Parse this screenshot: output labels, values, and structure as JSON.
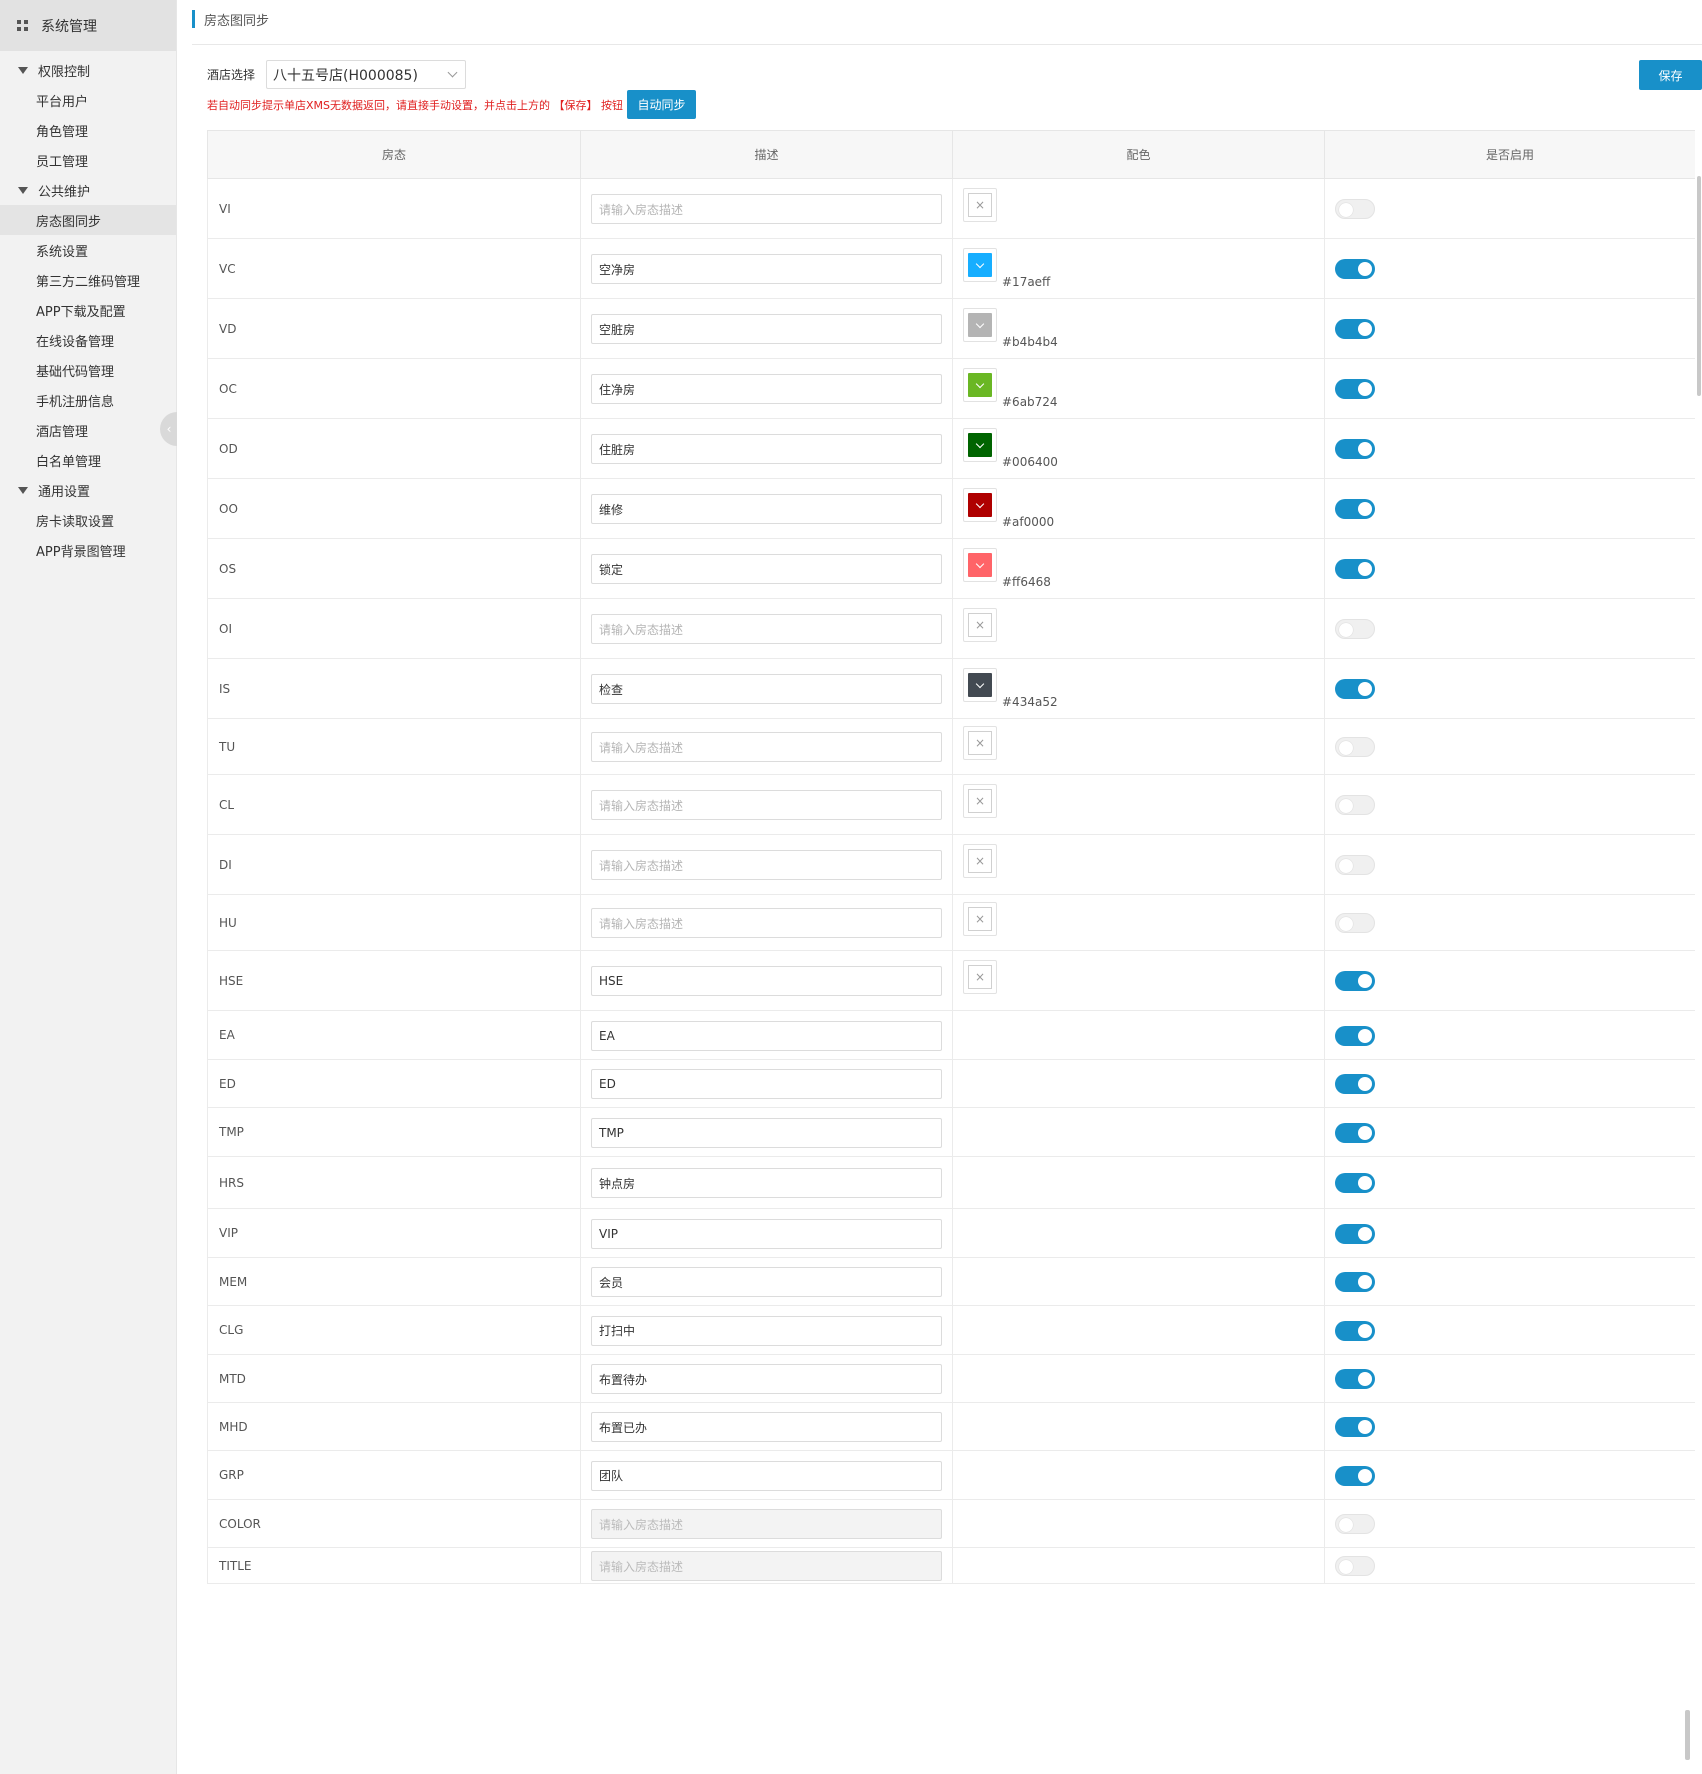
{
  "sidebar": {
    "title": "系统管理",
    "groups": [
      {
        "label": "权限控制",
        "items": [
          "平台用户",
          "角色管理",
          "员工管理"
        ]
      },
      {
        "label": "公共维护",
        "items": [
          "房态图同步",
          "系统设置",
          "第三方二维码管理",
          "APP下载及配置",
          "在线设备管理",
          "基础代码管理",
          "手机注册信息",
          "酒店管理",
          "白名单管理"
        ]
      },
      {
        "label": "通用设置",
        "items": [
          "房卡读取设置",
          "APP背景图管理"
        ]
      }
    ],
    "active_item": "房态图同步",
    "collapse_glyph": "‹"
  },
  "header": {
    "breadcrumb": "房态图同步",
    "hotel_label": "酒店选择",
    "hotel_value": "八十五号店(H000085)",
    "save_label": "保存",
    "warning": "若自动同步提示单店XMS无数据返回，请直接手动设置，并点击上方的 【保存】 按钮",
    "auto_sync_label": "自动同步"
  },
  "table": {
    "columns": [
      "房态",
      "描述",
      "配色",
      "是否启用"
    ],
    "placeholder": "请输入房态描述",
    "rows": [
      {
        "code": "VI",
        "desc": "",
        "color": null,
        "swatch": "empty",
        "enabled": false
      },
      {
        "code": "VC",
        "desc": "空净房",
        "color": "#17aeff",
        "swatch": "color",
        "enabled": true
      },
      {
        "code": "VD",
        "desc": "空脏房",
        "color": "#b4b4b4",
        "swatch": "color",
        "enabled": true
      },
      {
        "code": "OC",
        "desc": "住净房",
        "color": "#6ab724",
        "swatch": "color",
        "enabled": true
      },
      {
        "code": "OD",
        "desc": "住脏房",
        "color": "#006400",
        "swatch": "color",
        "enabled": true
      },
      {
        "code": "OO",
        "desc": "维修",
        "color": "#af0000",
        "swatch": "color",
        "enabled": true
      },
      {
        "code": "OS",
        "desc": "锁定",
        "color": "#ff6468",
        "swatch": "color",
        "enabled": true
      },
      {
        "code": "OI",
        "desc": "",
        "color": null,
        "swatch": "empty",
        "enabled": false
      },
      {
        "code": "IS",
        "desc": "检查",
        "color": "#434a52",
        "swatch": "color",
        "enabled": true
      },
      {
        "code": "TU",
        "desc": "",
        "color": null,
        "swatch": "empty",
        "enabled": false
      },
      {
        "code": "CL",
        "desc": "",
        "color": null,
        "swatch": "empty",
        "enabled": false
      },
      {
        "code": "DI",
        "desc": "",
        "color": null,
        "swatch": "empty",
        "enabled": false
      },
      {
        "code": "HU",
        "desc": "",
        "color": null,
        "swatch": "empty",
        "enabled": false
      },
      {
        "code": "HSE",
        "desc": "HSE",
        "color": null,
        "swatch": "empty",
        "enabled": true
      },
      {
        "code": "EA",
        "desc": "EA",
        "color": null,
        "swatch": "none",
        "enabled": true
      },
      {
        "code": "ED",
        "desc": "ED",
        "color": null,
        "swatch": "none",
        "enabled": true
      },
      {
        "code": "TMP",
        "desc": "TMP",
        "color": null,
        "swatch": "none",
        "enabled": true
      },
      {
        "code": "HRS",
        "desc": "钟点房",
        "color": null,
        "swatch": "none",
        "enabled": true
      },
      {
        "code": "VIP",
        "desc": "VIP",
        "color": null,
        "swatch": "none",
        "enabled": true
      },
      {
        "code": "MEM",
        "desc": "会员",
        "color": null,
        "swatch": "none",
        "enabled": true
      },
      {
        "code": "CLG",
        "desc": "打扫中",
        "color": null,
        "swatch": "none",
        "enabled": true
      },
      {
        "code": "MTD",
        "desc": "布置待办",
        "color": null,
        "swatch": "none",
        "enabled": true
      },
      {
        "code": "MHD",
        "desc": "布置已办",
        "color": null,
        "swatch": "none",
        "enabled": true
      },
      {
        "code": "GRP",
        "desc": "团队",
        "color": null,
        "swatch": "none",
        "enabled": true
      },
      {
        "code": "COLOR",
        "desc": "",
        "color": null,
        "swatch": "none",
        "enabled": false,
        "disabled": true
      },
      {
        "code": "TITLE",
        "desc": "",
        "color": null,
        "swatch": "none",
        "enabled": false,
        "disabled": true
      }
    ]
  },
  "colors": {
    "accent": "#1890c9",
    "warning": "#e02020"
  }
}
